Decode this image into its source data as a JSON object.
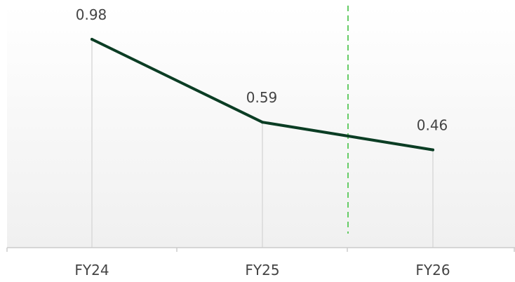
{
  "chart_data": {
    "type": "line",
    "categories": [
      "FY24",
      "FY25",
      "FY26"
    ],
    "series": [
      {
        "values": [
          0.98,
          0.59,
          0.46
        ],
        "color": "#0b3d24"
      }
    ],
    "data_labels": [
      "0.98",
      "0.59",
      "0.46"
    ],
    "title": "",
    "xlabel": "",
    "ylabel": "",
    "ylim": [
      0,
      1.15
    ],
    "grid": false,
    "legend": "none",
    "reference_line": {
      "x_position": "between FY25 and FY26",
      "style": "dashed",
      "color": "#66cc66"
    },
    "colors": {
      "line": "#0b3d24",
      "drop_lines": "#d9d9d9",
      "axis": "#cccccc",
      "background_top": "#ffffff",
      "background_bottom": "#f0f0f0",
      "reference_line": "#66cc66"
    }
  }
}
